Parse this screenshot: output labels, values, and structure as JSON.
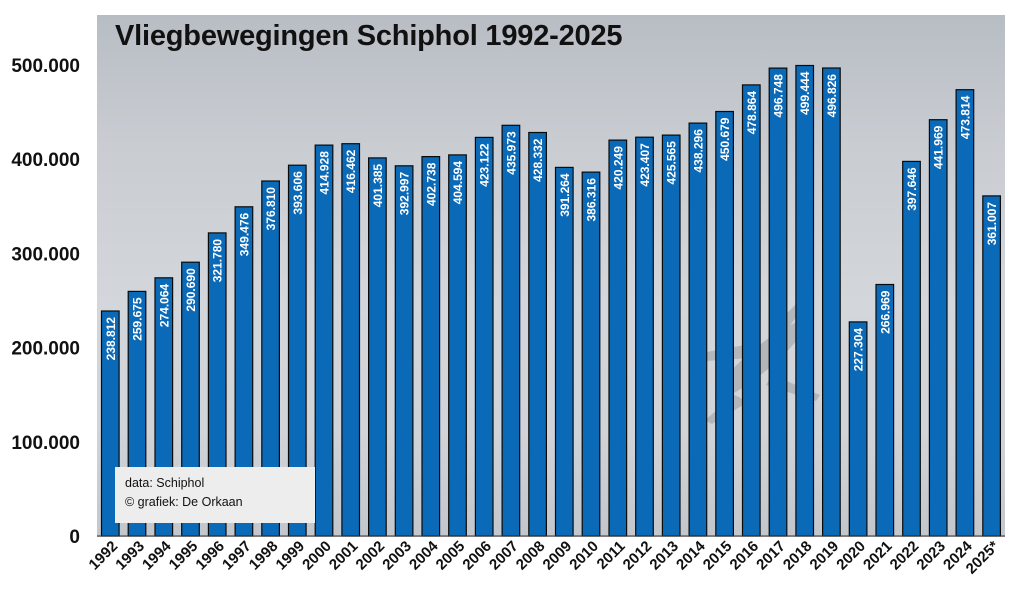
{
  "chart_data": {
    "type": "bar",
    "title": "Vliegbewegingen Schiphol 1992-2025",
    "xlabel": "",
    "ylabel": "",
    "ylim": [
      0,
      550000
    ],
    "yticks": [
      0,
      100000,
      200000,
      300000,
      400000,
      500000
    ],
    "ytick_labels": [
      "0",
      "100.000",
      "200.000",
      "300.000",
      "400.000",
      "500.000"
    ],
    "categories": [
      "1992",
      "1993",
      "1994",
      "1995",
      "1996",
      "1997",
      "1998",
      "1999",
      "2000",
      "2001",
      "2002",
      "2003",
      "2004",
      "2005",
      "2006",
      "2007",
      "2008",
      "2009",
      "2010",
      "2011",
      "2012",
      "2013",
      "2014",
      "2015",
      "2016",
      "2017",
      "2018",
      "2019",
      "2020",
      "2021",
      "2022",
      "2023",
      "2024",
      "2025*"
    ],
    "values": [
      238812,
      259675,
      274064,
      290690,
      321780,
      349476,
      376810,
      393606,
      414928,
      416462,
      401385,
      392997,
      402738,
      404594,
      423122,
      435973,
      428332,
      391264,
      386316,
      420249,
      423407,
      425565,
      438296,
      450679,
      478864,
      496748,
      499444,
      496826,
      227304,
      266969,
      397646,
      441969,
      473814,
      361007
    ],
    "value_labels": [
      "238.812",
      "259.675",
      "274.064",
      "290.690",
      "321.780",
      "349.476",
      "376.810",
      "393.606",
      "414.928",
      "416.462",
      "401.385",
      "392.997",
      "402.738",
      "404.594",
      "423.122",
      "435.973",
      "428.332",
      "391.264",
      "386.316",
      "420.249",
      "423.407",
      "425.565",
      "438.296",
      "450.679",
      "478.864",
      "496.748",
      "499.444",
      "496.826",
      "227.304",
      "266.969",
      "397.646",
      "441.969",
      "473.814",
      "361.007"
    ],
    "bar_color": "#0b6ab8",
    "grid": false
  },
  "source_box": {
    "line1": "data: Schiphol",
    "line2": "© grafiek: De Orkaan"
  }
}
